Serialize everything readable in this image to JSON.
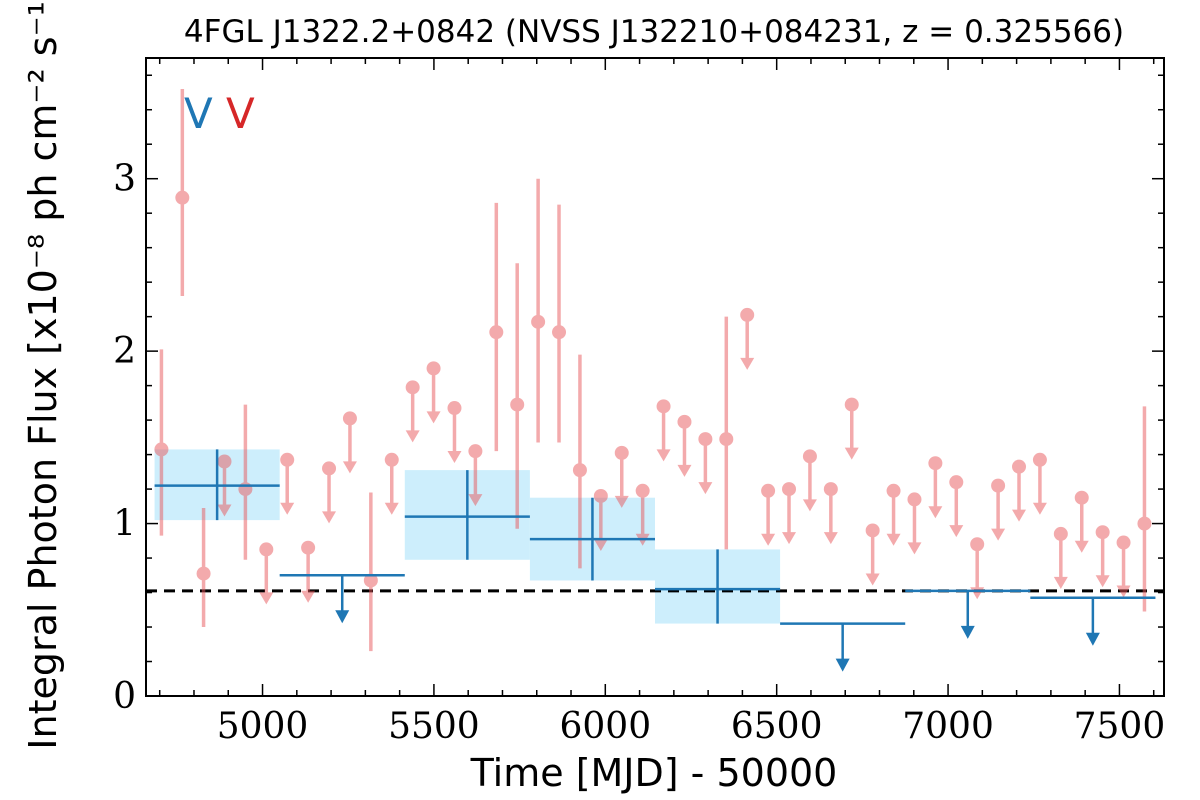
{
  "chart_data": {
    "type": "scatter",
    "title": "4FGL J1322.2+0842 (NVSS J132210+084231, z = 0.325566)",
    "xlabel": "Time [MJD] - 50000",
    "ylabel": "Integral Photon Flux [x10⁻⁸ ph cm⁻² s⁻¹]",
    "xlim": [
      4660,
      7630
    ],
    "ylim": [
      0,
      3.7
    ],
    "xticks": [
      5000,
      5500,
      6000,
      6500,
      7000,
      7500
    ],
    "yticks": [
      0,
      1,
      2,
      3
    ],
    "grid": false,
    "legend": {
      "position": "top-left",
      "entries": [
        {
          "label": "V",
          "color": "#1f77b4"
        },
        {
          "label": "V",
          "color": "#d62728"
        }
      ]
    },
    "reference_line": {
      "y": 0.61,
      "style": "dashed",
      "color": "#000000"
    },
    "series": [
      {
        "color": "#1f77b4",
        "band_color": "#cdeefc",
        "detections": [
          {
            "x0": 4685,
            "x1": 5050,
            "y": 1.22,
            "ylo": 1.02,
            "yhi": 1.43
          },
          {
            "x0": 5415,
            "x1": 5780,
            "y": 1.04,
            "ylo": 0.79,
            "yhi": 1.31
          },
          {
            "x0": 5780,
            "x1": 6145,
            "y": 0.91,
            "ylo": 0.67,
            "yhi": 1.15
          },
          {
            "x0": 6145,
            "x1": 6510,
            "y": 0.62,
            "ylo": 0.42,
            "yhi": 0.85
          }
        ],
        "upper_limits": [
          {
            "x0": 5050,
            "x1": 5415,
            "y": 0.7
          },
          {
            "x0": 6510,
            "x1": 6875,
            "y": 0.42
          },
          {
            "x0": 6875,
            "x1": 7240,
            "y": 0.61
          },
          {
            "x0": 7240,
            "x1": 7605,
            "y": 0.57
          }
        ]
      },
      {
        "color": "#e8585c",
        "detections": [
          {
            "x": 4705,
            "y": 1.43,
            "ylo": 0.93,
            "yhi": 2.01
          },
          {
            "x": 4766,
            "y": 2.89,
            "ylo": 2.32,
            "yhi": 3.52
          },
          {
            "x": 4828,
            "y": 0.71,
            "ylo": 0.4,
            "yhi": 1.09
          },
          {
            "x": 4950,
            "y": 1.2,
            "ylo": 0.79,
            "yhi": 1.69
          },
          {
            "x": 5316,
            "y": 0.67,
            "ylo": 0.26,
            "yhi": 1.18
          },
          {
            "x": 5682,
            "y": 2.11,
            "ylo": 1.42,
            "yhi": 2.86
          },
          {
            "x": 5743,
            "y": 1.69,
            "ylo": 0.97,
            "yhi": 2.51
          },
          {
            "x": 5804,
            "y": 2.17,
            "ylo": 1.47,
            "yhi": 3.0
          },
          {
            "x": 5865,
            "y": 2.11,
            "ylo": 1.47,
            "yhi": 2.85
          },
          {
            "x": 5926,
            "y": 1.31,
            "ylo": 0.74,
            "yhi": 1.98
          },
          {
            "x": 6353,
            "y": 1.49,
            "ylo": 0.85,
            "yhi": 2.2
          },
          {
            "x": 7573,
            "y": 1.0,
            "ylo": 0.49,
            "yhi": 1.68
          }
        ],
        "upper_limits": [
          {
            "x": 4889,
            "y": 1.36
          },
          {
            "x": 5011,
            "y": 0.85
          },
          {
            "x": 5072,
            "y": 1.37
          },
          {
            "x": 5133,
            "y": 0.86
          },
          {
            "x": 5194,
            "y": 1.32
          },
          {
            "x": 5255,
            "y": 1.61
          },
          {
            "x": 5377,
            "y": 1.37
          },
          {
            "x": 5438,
            "y": 1.79
          },
          {
            "x": 5499,
            "y": 1.9
          },
          {
            "x": 5560,
            "y": 1.67
          },
          {
            "x": 5621,
            "y": 1.42
          },
          {
            "x": 5987,
            "y": 1.16
          },
          {
            "x": 6048,
            "y": 1.41
          },
          {
            "x": 6109,
            "y": 1.19
          },
          {
            "x": 6170,
            "y": 1.68
          },
          {
            "x": 6231,
            "y": 1.59
          },
          {
            "x": 6292,
            "y": 1.49
          },
          {
            "x": 6414,
            "y": 2.21
          },
          {
            "x": 6475,
            "y": 1.19
          },
          {
            "x": 6536,
            "y": 1.2
          },
          {
            "x": 6597,
            "y": 1.39
          },
          {
            "x": 6658,
            "y": 1.2
          },
          {
            "x": 6719,
            "y": 1.69
          },
          {
            "x": 6780,
            "y": 0.96
          },
          {
            "x": 6841,
            "y": 1.19
          },
          {
            "x": 6902,
            "y": 1.14
          },
          {
            "x": 6963,
            "y": 1.35
          },
          {
            "x": 7024,
            "y": 1.24
          },
          {
            "x": 7085,
            "y": 0.88
          },
          {
            "x": 7146,
            "y": 1.22
          },
          {
            "x": 7207,
            "y": 1.33
          },
          {
            "x": 7268,
            "y": 1.37
          },
          {
            "x": 7329,
            "y": 0.94
          },
          {
            "x": 7390,
            "y": 1.15
          },
          {
            "x": 7451,
            "y": 0.95
          },
          {
            "x": 7512,
            "y": 0.89
          }
        ]
      }
    ]
  }
}
